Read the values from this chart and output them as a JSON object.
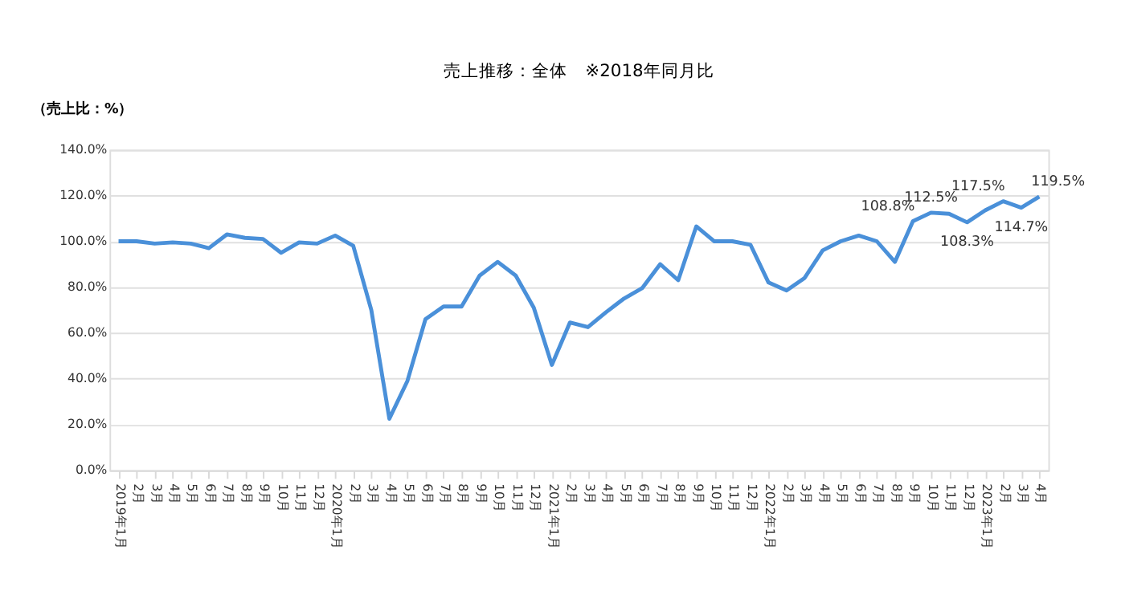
{
  "chart_data": {
    "type": "line",
    "title": "売上推移：全体　※2018年同月比",
    "ylabel": "（売上比：%）",
    "categories": [
      "2019年1月",
      "2月",
      "3月",
      "4月",
      "5月",
      "6月",
      "7月",
      "8月",
      "9月",
      "10月",
      "11月",
      "12月",
      "2020年1月",
      "2月",
      "3月",
      "4月",
      "5月",
      "6月",
      "7月",
      "8月",
      "9月",
      "10月",
      "11月",
      "12月",
      "2021年1月",
      "2月",
      "3月",
      "4月",
      "5月",
      "6月",
      "7月",
      "8月",
      "9月",
      "10月",
      "11月",
      "12月",
      "2022年1月",
      "2月",
      "3月",
      "4月",
      "5月",
      "6月",
      "7月",
      "8月",
      "9月",
      "10月",
      "11月",
      "12月",
      "2023年1月",
      "2月",
      "3月",
      "4月"
    ],
    "series": [
      {
        "color": "#4a90d9",
        "values": [
          100,
          100,
          99,
          99.5,
          99,
          97,
          103,
          101.5,
          101,
          95,
          99.5,
          99,
          102.5,
          98,
          70,
          22.5,
          39,
          66,
          71.5,
          71.5,
          85,
          91,
          85,
          71,
          46,
          64.5,
          62.5,
          69,
          75,
          79.5,
          90,
          83,
          106.5,
          100,
          100,
          98.5,
          82,
          78.5,
          84,
          96,
          100,
          102.5,
          100,
          91,
          108.8,
          112.5,
          112,
          108.3,
          113.5,
          117.5,
          114.7,
          119.5
        ],
        "value_labels": [
          null,
          null,
          null,
          null,
          null,
          null,
          null,
          null,
          null,
          null,
          null,
          null,
          null,
          null,
          null,
          null,
          null,
          null,
          null,
          null,
          null,
          null,
          null,
          null,
          null,
          null,
          null,
          null,
          null,
          null,
          null,
          null,
          null,
          null,
          null,
          null,
          null,
          null,
          null,
          null,
          null,
          null,
          null,
          null,
          "108.8%",
          "112.5%",
          null,
          "108.3%",
          null,
          "117.5%",
          "114.7%",
          "119.5%"
        ]
      }
    ],
    "ylim": [
      0,
      140
    ],
    "yticks": [
      {
        "value": 0,
        "label": "0.0%"
      },
      {
        "value": 20,
        "label": "20.0%"
      },
      {
        "value": 40,
        "label": "40.0%"
      },
      {
        "value": 60,
        "label": "60.0%"
      },
      {
        "value": 80,
        "label": "80.0%"
      },
      {
        "value": 100,
        "label": "100.0%"
      },
      {
        "value": 120,
        "label": "120.0%"
      },
      {
        "value": 140,
        "label": "140.0%"
      }
    ],
    "grid": "y",
    "marker": "none",
    "line_style": "solid"
  }
}
